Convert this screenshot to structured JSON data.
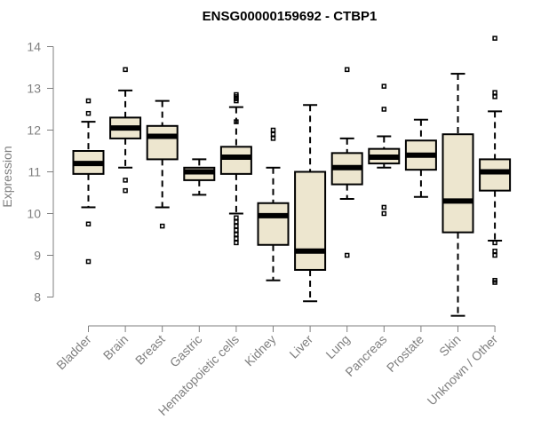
{
  "chart_data": {
    "type": "box",
    "title": "ENSG00000159692 - CTBP1",
    "xlabel": "",
    "ylabel": "Expression",
    "ylim": [
      7.4,
      14.4
    ],
    "yticks": [
      8,
      9,
      10,
      11,
      12,
      13,
      14
    ],
    "grid": false,
    "colors": {
      "box_fill": "#ede6cf",
      "stroke": "#000000",
      "axis": "#7f7f7f",
      "tick_label": "#7f7f7f",
      "title": "#000000"
    },
    "categories": [
      "Bladder",
      "Brain",
      "Breast",
      "Gastric",
      "Hematopoietic cells",
      "Kidney",
      "Liver",
      "Lung",
      "Pancreas",
      "Prostate",
      "Skin",
      "Unknown / Other"
    ],
    "boxes": [
      {
        "category": "Bladder",
        "whisker_low": 10.15,
        "q1": 10.95,
        "median": 11.2,
        "q3": 11.5,
        "whisker_high": 12.2,
        "outliers": [
          12.7,
          12.4,
          9.75,
          8.85
        ]
      },
      {
        "category": "Brain",
        "whisker_low": 11.1,
        "q1": 11.8,
        "median": 12.05,
        "q3": 12.3,
        "whisker_high": 12.95,
        "outliers": [
          13.45,
          10.8,
          10.55
        ]
      },
      {
        "category": "Breast",
        "whisker_low": 10.15,
        "q1": 11.3,
        "median": 11.85,
        "q3": 12.1,
        "whisker_high": 12.7,
        "outliers": [
          9.7
        ]
      },
      {
        "category": "Gastric",
        "whisker_low": 10.45,
        "q1": 10.8,
        "median": 11.0,
        "q3": 11.1,
        "whisker_high": 11.3,
        "outliers": []
      },
      {
        "category": "Hematopoietic cells",
        "whisker_low": 10.0,
        "q1": 10.95,
        "median": 11.35,
        "q3": 11.6,
        "whisker_high": 12.55,
        "outliers": [
          12.85,
          12.8,
          12.75,
          12.7,
          12.2,
          9.9,
          9.8,
          9.7,
          9.6,
          9.5,
          9.4,
          9.3
        ]
      },
      {
        "category": "Kidney",
        "whisker_low": 8.4,
        "q1": 9.25,
        "median": 9.95,
        "q3": 10.25,
        "whisker_high": 11.1,
        "outliers": [
          12.0,
          11.9,
          11.8
        ]
      },
      {
        "category": "Liver",
        "whisker_low": 7.9,
        "q1": 8.65,
        "median": 9.1,
        "q3": 11.0,
        "whisker_high": 12.6,
        "outliers": []
      },
      {
        "category": "Lung",
        "whisker_low": 10.35,
        "q1": 10.7,
        "median": 11.1,
        "q3": 11.45,
        "whisker_high": 11.8,
        "outliers": [
          13.45,
          9.0
        ]
      },
      {
        "category": "Pancreas",
        "whisker_low": 11.1,
        "q1": 11.2,
        "median": 11.35,
        "q3": 11.55,
        "whisker_high": 11.85,
        "outliers": [
          13.05,
          12.5,
          10.15,
          10.0
        ]
      },
      {
        "category": "Prostate",
        "whisker_low": 10.4,
        "q1": 11.05,
        "median": 11.4,
        "q3": 11.75,
        "whisker_high": 12.25,
        "outliers": []
      },
      {
        "category": "Skin",
        "whisker_low": 7.55,
        "q1": 9.55,
        "median": 10.3,
        "q3": 11.9,
        "whisker_high": 13.35,
        "outliers": []
      },
      {
        "category": "Unknown / Other",
        "whisker_low": 9.35,
        "q1": 10.55,
        "median": 11.0,
        "q3": 11.3,
        "whisker_high": 12.45,
        "outliers": [
          14.2,
          12.9,
          12.8,
          9.3,
          9.1,
          9.0,
          8.4,
          8.35
        ]
      }
    ]
  }
}
